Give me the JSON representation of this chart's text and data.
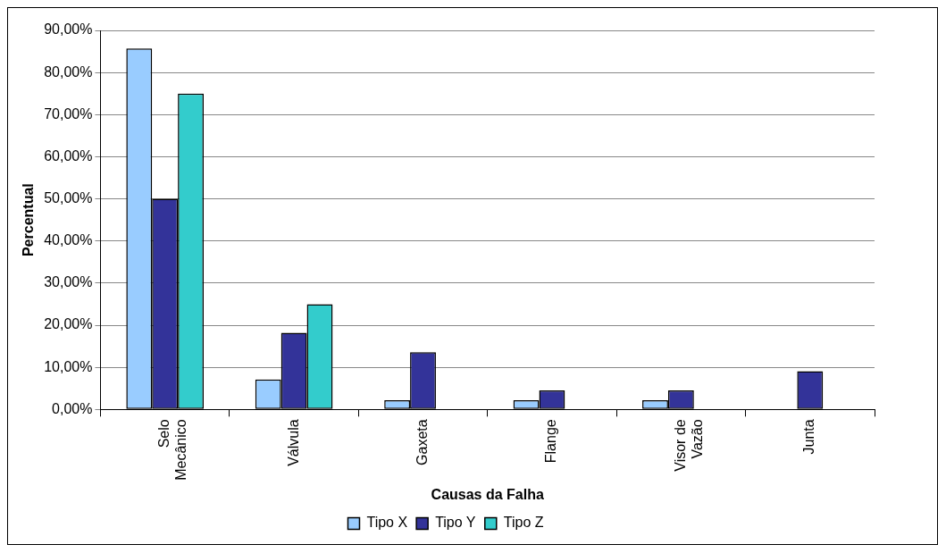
{
  "chart_data": {
    "type": "bar",
    "xlabel": "Causas da Falha",
    "ylabel": "Percentual",
    "categories": [
      "Selo Mecânico",
      "Válvula",
      "Gaxeta",
      "Flange",
      "Visor de Vazão",
      "Junta"
    ],
    "series": [
      {
        "name": "Tipo X",
        "color": "#99ccff",
        "values": [
          85.7,
          7.1,
          2.2,
          2.2,
          2.2,
          0
        ]
      },
      {
        "name": "Tipo Y",
        "color": "#333399",
        "values": [
          50,
          18.2,
          13.6,
          4.5,
          4.5,
          9.1
        ]
      },
      {
        "name": "Tipo Z",
        "color": "#33cccc",
        "values": [
          75,
          25,
          0,
          0,
          0,
          0
        ]
      }
    ],
    "ylim": [
      0,
      90
    ],
    "yticks": [
      {
        "value": 0,
        "label": "0,00%"
      },
      {
        "value": 10,
        "label": "10,00%"
      },
      {
        "value": 20,
        "label": "20,00%"
      },
      {
        "value": 30,
        "label": "30,00%"
      },
      {
        "value": 40,
        "label": "40,00%"
      },
      {
        "value": 50,
        "label": "50,00%"
      },
      {
        "value": 60,
        "label": "60,00%"
      },
      {
        "value": 70,
        "label": "70,00%"
      },
      {
        "value": 80,
        "label": "80,00%"
      },
      {
        "value": 90,
        "label": "90,00%"
      }
    ],
    "grid": "y",
    "legend": "bottom"
  }
}
